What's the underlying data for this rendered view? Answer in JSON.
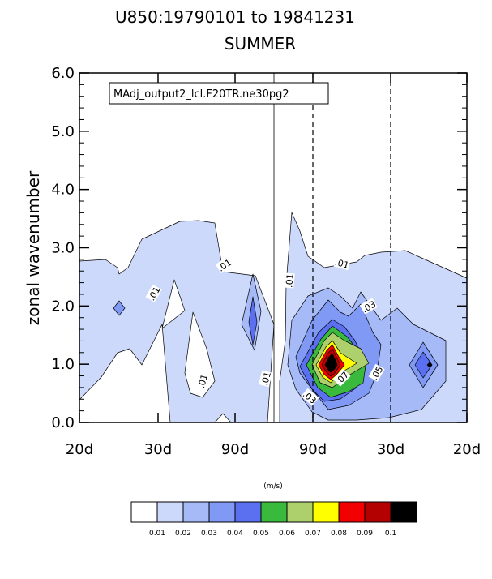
{
  "chart_data": {
    "type": "contour",
    "title": "U850:19790101 to 19841231",
    "subtitle": "SUMMER",
    "ylabel": "zonal wavenumber",
    "xlabel": "",
    "ylim": [
      0,
      6
    ],
    "y_ticks": [
      "0.0",
      "1.0",
      "2.0",
      "3.0",
      "4.0",
      "5.0",
      "6.0"
    ],
    "x_ticks": [
      "20d",
      "30d",
      "90d",
      "90d",
      "30d",
      "20d"
    ],
    "legend": "MAdj_output2_lcl.F20TR.ne30pg2",
    "units": "(m/s)",
    "colorbar_levels": [
      "0.01",
      "0.02",
      "0.03",
      "0.04",
      "0.05",
      "0.06",
      "0.07",
      "0.08",
      "0.09",
      "0.1"
    ],
    "colorbar_colors": [
      "#ffffff",
      "#ccd9fb",
      "#a6baf7",
      "#8099f5",
      "#5b6ff1",
      "#3aba3c",
      "#adcf6c",
      "#ffff00",
      "#f20000",
      "#b30000",
      "#000000"
    ],
    "contour_labels": [
      {
        "text": ".01"
      },
      {
        "text": ".01"
      },
      {
        "text": ".01"
      },
      {
        "text": ".01"
      },
      {
        "text": ".01"
      },
      {
        "text": ".01"
      },
      {
        "text": ".03"
      },
      {
        "text": ".03"
      },
      {
        "text": ".05"
      },
      {
        "text": ".07"
      }
    ]
  }
}
